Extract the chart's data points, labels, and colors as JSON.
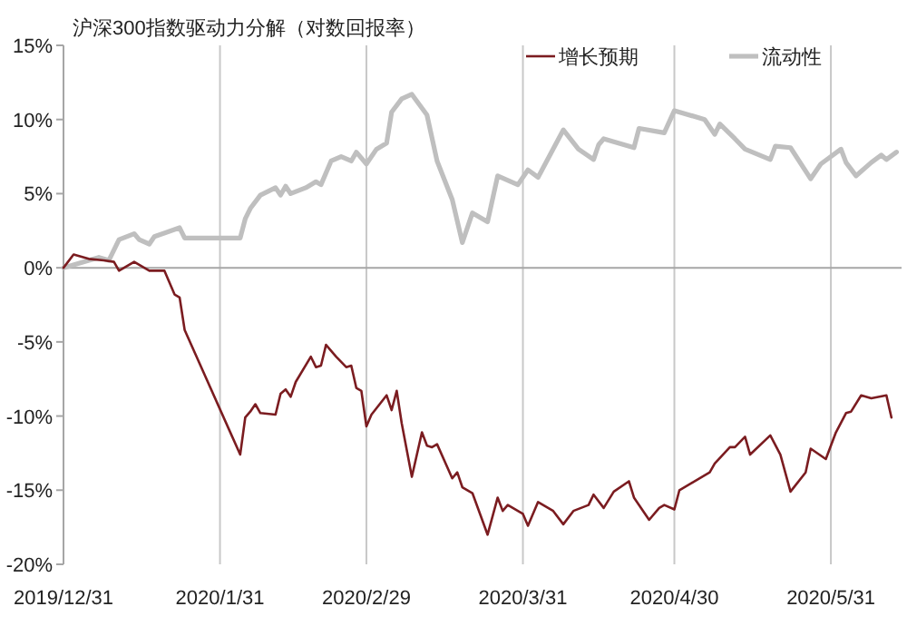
{
  "chart_data": {
    "type": "line",
    "title": "沪深300指数驱动力分解（对数回报率）",
    "xlim": [
      "2019-12-31",
      "2020-06-14"
    ],
    "xticks": [
      {
        "value": "2019-12-31",
        "label": "2019/12/31"
      },
      {
        "value": "2020-01-31",
        "label": "2020/1/31"
      },
      {
        "value": "2020-02-29",
        "label": "2020/2/29"
      },
      {
        "value": "2020-03-31",
        "label": "2020/3/31"
      },
      {
        "value": "2020-04-30",
        "label": "2020/4/30"
      },
      {
        "value": "2020-05-31",
        "label": "2020/5/31"
      }
    ],
    "ylim": [
      -20,
      15
    ],
    "yticks": [
      {
        "value": -20,
        "label": "-20%"
      },
      {
        "value": -15,
        "label": "-15%"
      },
      {
        "value": -10,
        "label": "-10%"
      },
      {
        "value": -5,
        "label": "-5%"
      },
      {
        "value": 0,
        "label": "0%"
      },
      {
        "value": 5,
        "label": "5%"
      },
      {
        "value": 10,
        "label": "10%"
      },
      {
        "value": 15,
        "label": "15%"
      }
    ],
    "grid": "x",
    "legend": "top right",
    "marker": "none",
    "line_style": "solid",
    "ref_lines": [
      {
        "axis": "y",
        "value": 0,
        "color": "#a6a6a6"
      }
    ],
    "series": [
      {
        "name": "增长预期",
        "color": "#7b1c20",
        "x": [
          "2019-12-31",
          "2020-01-02",
          "2020-01-05",
          "2020-01-08",
          "2020-01-10",
          "2020-01-11",
          "2020-01-14",
          "2020-01-17",
          "2020-01-20",
          "2020-01-22",
          "2020-01-23",
          "2020-01-24",
          "2020-02-04",
          "2020-02-05",
          "2020-02-06",
          "2020-02-07",
          "2020-02-08",
          "2020-02-11",
          "2020-02-12",
          "2020-02-13",
          "2020-02-14",
          "2020-02-15",
          "2020-02-18",
          "2020-02-19",
          "2020-02-20",
          "2020-02-21",
          "2020-02-23",
          "2020-02-25",
          "2020-02-26",
          "2020-02-27",
          "2020-02-28",
          "2020-02-29",
          "2020-03-01",
          "2020-03-04",
          "2020-03-05",
          "2020-03-06",
          "2020-03-07",
          "2020-03-09",
          "2020-03-11",
          "2020-03-12",
          "2020-03-13",
          "2020-03-14",
          "2020-03-17",
          "2020-03-18",
          "2020-03-19",
          "2020-03-21",
          "2020-03-24",
          "2020-03-26",
          "2020-03-27",
          "2020-03-28",
          "2020-03-31",
          "2020-04-01",
          "2020-04-03",
          "2020-04-06",
          "2020-04-08",
          "2020-04-10",
          "2020-04-13",
          "2020-04-14",
          "2020-04-16",
          "2020-04-18",
          "2020-04-21",
          "2020-04-22",
          "2020-04-25",
          "2020-04-27",
          "2020-04-28",
          "2020-04-30",
          "2020-05-01",
          "2020-05-07",
          "2020-05-08",
          "2020-05-11",
          "2020-05-12",
          "2020-05-14",
          "2020-05-15",
          "2020-05-19",
          "2020-05-21",
          "2020-05-23",
          "2020-05-26",
          "2020-05-27",
          "2020-05-30",
          "2020-06-01",
          "2020-06-03",
          "2020-06-04",
          "2020-06-06",
          "2020-06-08",
          "2020-06-11",
          "2020-06-12"
        ],
        "values": [
          0,
          0.9,
          0.6,
          0.5,
          0.4,
          -0.2,
          0.4,
          -0.2,
          -0.2,
          -1.8,
          -2.0,
          -4.2,
          -12.6,
          -10.1,
          -9.7,
          -9.2,
          -9.8,
          -9.9,
          -8.5,
          -8.2,
          -8.7,
          -7.7,
          -6.0,
          -6.7,
          -6.6,
          -5.2,
          -6.0,
          -6.7,
          -6.6,
          -8.1,
          -8.3,
          -10.7,
          -9.9,
          -8.6,
          -9.6,
          -8.3,
          -10.5,
          -14.1,
          -11.1,
          -12.0,
          -12.1,
          -11.9,
          -14.2,
          -13.8,
          -14.8,
          -15.2,
          -18.0,
          -15.5,
          -16.4,
          -16.0,
          -16.6,
          -17.4,
          -15.8,
          -16.4,
          -17.3,
          -16.4,
          -16.0,
          -15.3,
          -16.2,
          -15.1,
          -14.4,
          -15.5,
          -17.0,
          -16.2,
          -16.0,
          -16.3,
          -15.0,
          -13.8,
          -13.2,
          -12.1,
          -12.1,
          -11.4,
          -12.6,
          -11.3,
          -12.6,
          -15.1,
          -13.8,
          -12.2,
          -12.9,
          -11.1,
          -9.8,
          -9.7,
          -8.6,
          -8.8,
          -8.6,
          -10.1
        ]
      },
      {
        "name": "流动性",
        "color": "#bfbfbf",
        "x": [
          "2019-12-31",
          "2020-01-07",
          "2020-01-09",
          "2020-01-11",
          "2020-01-14",
          "2020-01-15",
          "2020-01-17",
          "2020-01-18",
          "2020-01-23",
          "2020-01-24",
          "2020-02-04",
          "2020-02-05",
          "2020-02-06",
          "2020-02-08",
          "2020-02-11",
          "2020-02-12",
          "2020-02-13",
          "2020-02-14",
          "2020-02-17",
          "2020-02-19",
          "2020-02-20",
          "2020-02-22",
          "2020-02-24",
          "2020-02-26",
          "2020-02-27",
          "2020-02-29",
          "2020-03-02",
          "2020-03-04",
          "2020-03-05",
          "2020-03-07",
          "2020-03-09",
          "2020-03-12",
          "2020-03-14",
          "2020-03-17",
          "2020-03-19",
          "2020-03-21",
          "2020-03-24",
          "2020-03-26",
          "2020-03-30",
          "2020-04-01",
          "2020-04-03",
          "2020-04-08",
          "2020-04-11",
          "2020-04-14",
          "2020-04-15",
          "2020-04-16",
          "2020-04-22",
          "2020-04-23",
          "2020-04-28",
          "2020-04-30",
          "2020-05-06",
          "2020-05-08",
          "2020-05-09",
          "2020-05-12",
          "2020-05-14",
          "2020-05-19",
          "2020-05-20",
          "2020-05-23",
          "2020-05-27",
          "2020-05-29",
          "2020-06-02",
          "2020-06-03",
          "2020-06-05",
          "2020-06-08",
          "2020-06-10",
          "2020-06-11",
          "2020-06-13"
        ],
        "values": [
          0,
          0.7,
          0.5,
          1.9,
          2.3,
          1.9,
          1.6,
          2.1,
          2.7,
          2.0,
          2.0,
          3.3,
          4.0,
          4.9,
          5.4,
          4.9,
          5.5,
          5.0,
          5.4,
          5.8,
          5.6,
          7.2,
          7.5,
          7.2,
          7.8,
          7.0,
          8.0,
          8.4,
          10.5,
          11.4,
          11.7,
          10.3,
          7.2,
          4.6,
          1.7,
          3.7,
          3.1,
          6.2,
          5.6,
          6.6,
          6.1,
          9.3,
          8.0,
          7.3,
          8.3,
          8.7,
          8.1,
          9.4,
          9.1,
          10.6,
          10.0,
          9.0,
          9.7,
          8.7,
          8.0,
          7.3,
          8.2,
          8.1,
          6.0,
          7.0,
          8.0,
          7.1,
          6.2,
          7.1,
          7.6,
          7.3,
          7.8
        ]
      }
    ]
  }
}
